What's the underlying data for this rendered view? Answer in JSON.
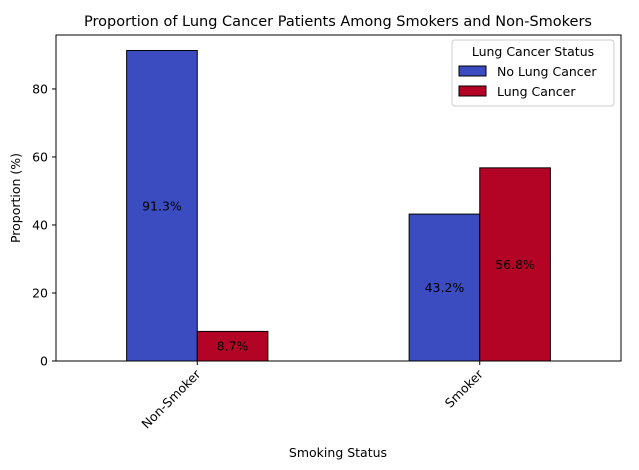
{
  "chart_data": {
    "type": "bar",
    "title": "Proportion of Lung Cancer Patients Among Smokers and Non-Smokers",
    "xlabel": "Smoking Status",
    "ylabel": "Proportion (%)",
    "categories": [
      "Non-Smoker",
      "Smoker"
    ],
    "series": [
      {
        "name": "No Lung Cancer",
        "values": [
          91.3,
          43.2
        ],
        "color": "#3b4cc0"
      },
      {
        "name": "Lung Cancer",
        "values": [
          8.7,
          56.8
        ],
        "color": "#b40426"
      }
    ],
    "data_labels": [
      [
        "91.3%",
        "43.2%"
      ],
      [
        "8.7%",
        "56.8%"
      ]
    ],
    "ylim": [
      0,
      95.865
    ],
    "yticks": [
      0,
      20,
      40,
      60,
      80
    ],
    "legend": {
      "title": "Lung Cancer Status",
      "position": "top-right"
    },
    "grid": false
  }
}
